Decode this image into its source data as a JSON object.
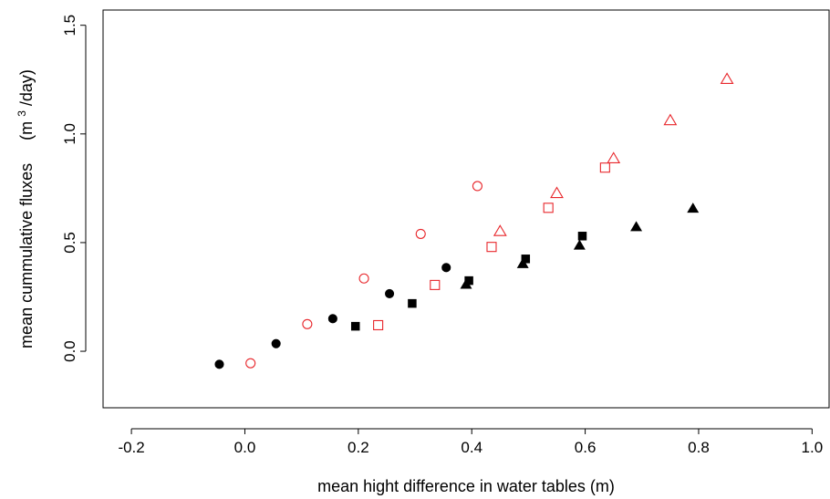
{
  "chart_data": {
    "type": "scatter",
    "xlabel": "mean hight difference in water tables (m)",
    "ylabel_text": "mean cummulative fluxes",
    "ylabel_unit_base": "(m",
    "ylabel_unit_sup": "3",
    "ylabel_unit_tail": "/day)",
    "xlim": [
      -0.25,
      1.03
    ],
    "ylim": [
      -0.26,
      1.57
    ],
    "x_ticks": [
      -0.2,
      0.0,
      0.2,
      0.4,
      0.6,
      0.8,
      1.0
    ],
    "x_tick_labels": [
      "-0.2",
      "0.0",
      "0.2",
      "0.4",
      "0.6",
      "0.8",
      "1.0"
    ],
    "y_ticks": [
      0.0,
      0.5,
      1.0,
      1.5
    ],
    "y_tick_labels": [
      "0.0",
      "0.5",
      "1.0",
      "1.5"
    ],
    "grid": false,
    "legend": "none",
    "colors": {
      "black": "#000000",
      "red": "#e8262b"
    },
    "series": [
      {
        "marker": "circle-filled",
        "color": "#000000",
        "points": [
          [
            -0.045,
            -0.06
          ],
          [
            0.055,
            0.035
          ],
          [
            0.155,
            0.15
          ],
          [
            0.255,
            0.265
          ],
          [
            0.355,
            0.385
          ]
        ]
      },
      {
        "marker": "square-filled",
        "color": "#000000",
        "points": [
          [
            0.195,
            0.115
          ],
          [
            0.295,
            0.22
          ],
          [
            0.395,
            0.325
          ],
          [
            0.495,
            0.425
          ],
          [
            0.595,
            0.53
          ]
        ]
      },
      {
        "marker": "triangle-filled",
        "color": "#000000",
        "points": [
          [
            0.39,
            0.305
          ],
          [
            0.49,
            0.4
          ],
          [
            0.59,
            0.485
          ],
          [
            0.69,
            0.57
          ],
          [
            0.79,
            0.655
          ]
        ]
      },
      {
        "marker": "circle-open",
        "color": "#e8262b",
        "points": [
          [
            0.01,
            -0.055
          ],
          [
            0.11,
            0.125
          ],
          [
            0.21,
            0.335
          ],
          [
            0.31,
            0.54
          ],
          [
            0.41,
            0.76
          ]
        ]
      },
      {
        "marker": "square-open",
        "color": "#e8262b",
        "points": [
          [
            0.235,
            0.12
          ],
          [
            0.335,
            0.305
          ],
          [
            0.435,
            0.48
          ],
          [
            0.535,
            0.66
          ],
          [
            0.635,
            0.845
          ]
        ]
      },
      {
        "marker": "triangle-open",
        "color": "#e8262b",
        "points": [
          [
            0.45,
            0.55
          ],
          [
            0.55,
            0.725
          ],
          [
            0.65,
            0.885
          ],
          [
            0.75,
            1.06
          ],
          [
            0.85,
            1.25
          ]
        ]
      }
    ]
  }
}
